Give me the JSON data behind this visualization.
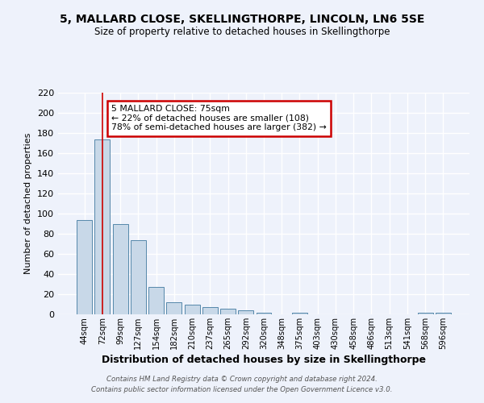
{
  "title": "5, MALLARD CLOSE, SKELLINGTHORPE, LINCOLN, LN6 5SE",
  "subtitle": "Size of property relative to detached houses in Skellingthorpe",
  "xlabel": "Distribution of detached houses by size in Skellingthorpe",
  "ylabel": "Number of detached properties",
  "categories": [
    "44sqm",
    "72sqm",
    "99sqm",
    "127sqm",
    "154sqm",
    "182sqm",
    "210sqm",
    "237sqm",
    "265sqm",
    "292sqm",
    "320sqm",
    "348sqm",
    "375sqm",
    "403sqm",
    "430sqm",
    "458sqm",
    "486sqm",
    "513sqm",
    "541sqm",
    "568sqm",
    "596sqm"
  ],
  "values": [
    94,
    174,
    90,
    74,
    27,
    12,
    10,
    7,
    6,
    4,
    2,
    0,
    2,
    0,
    0,
    0,
    0,
    0,
    0,
    2,
    2
  ],
  "bar_color": "#c8d8e8",
  "bar_edge_color": "#5588aa",
  "red_line_x": 1,
  "annotation_text": "5 MALLARD CLOSE: 75sqm\n← 22% of detached houses are smaller (108)\n78% of semi-detached houses are larger (382) →",
  "annotation_box_color": "#ffffff",
  "annotation_box_edge": "#cc0000",
  "footer_line1": "Contains HM Land Registry data © Crown copyright and database right 2024.",
  "footer_line2": "Contains public sector information licensed under the Open Government Licence v3.0.",
  "bg_color": "#eef2fb",
  "grid_color": "#ffffff",
  "ylim": [
    0,
    220
  ],
  "yticks": [
    0,
    20,
    40,
    60,
    80,
    100,
    120,
    140,
    160,
    180,
    200,
    220
  ]
}
